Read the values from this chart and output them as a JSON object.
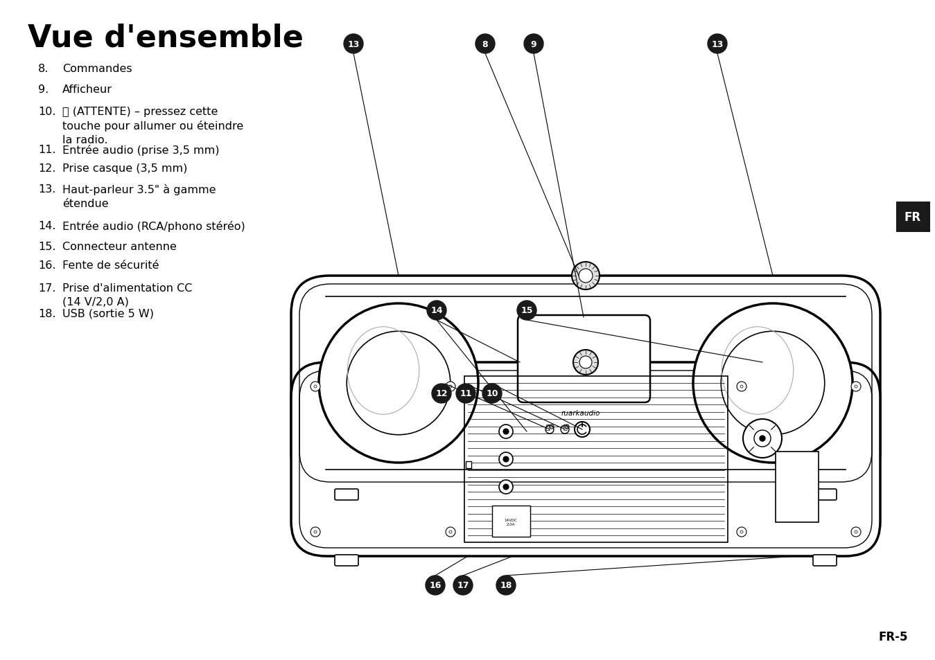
{
  "title": "Vue d'ensemble",
  "bg_color": "#ffffff",
  "text_color": "#000000",
  "list_items": [
    {
      "num": "8.",
      "text": "Commandes"
    },
    {
      "num": "9.",
      "text": "Afficheur"
    },
    {
      "num": "10.",
      "text": "⏻ (ATTENTE) – pressez cette\ntouche pour allumer ou éteindre\nla radio."
    },
    {
      "num": "11.",
      "text": "Entrée audio (prise 3,5 mm)"
    },
    {
      "num": "12.",
      "text": "Prise casque (3,5 mm)"
    },
    {
      "num": "13.",
      "text": "Haut-parleur 3.5\" à gamme\nétendue"
    },
    {
      "num": "14.",
      "text": "Entrée audio (RCA/phono stéréo)"
    },
    {
      "num": "15.",
      "text": "Connecteur antenne"
    },
    {
      "num": "16.",
      "text": "Fente de sécurité"
    },
    {
      "num": "17.",
      "text": "Prise d'alimentation CC\n(14 V/2,0 A)"
    },
    {
      "num": "18.",
      "text": "USB (sortie 5 W)"
    }
  ],
  "fr_label": "FR",
  "page_label": "FR-5",
  "badge_color": "#1a1a1a",
  "badge_text_color": "#ffffff"
}
